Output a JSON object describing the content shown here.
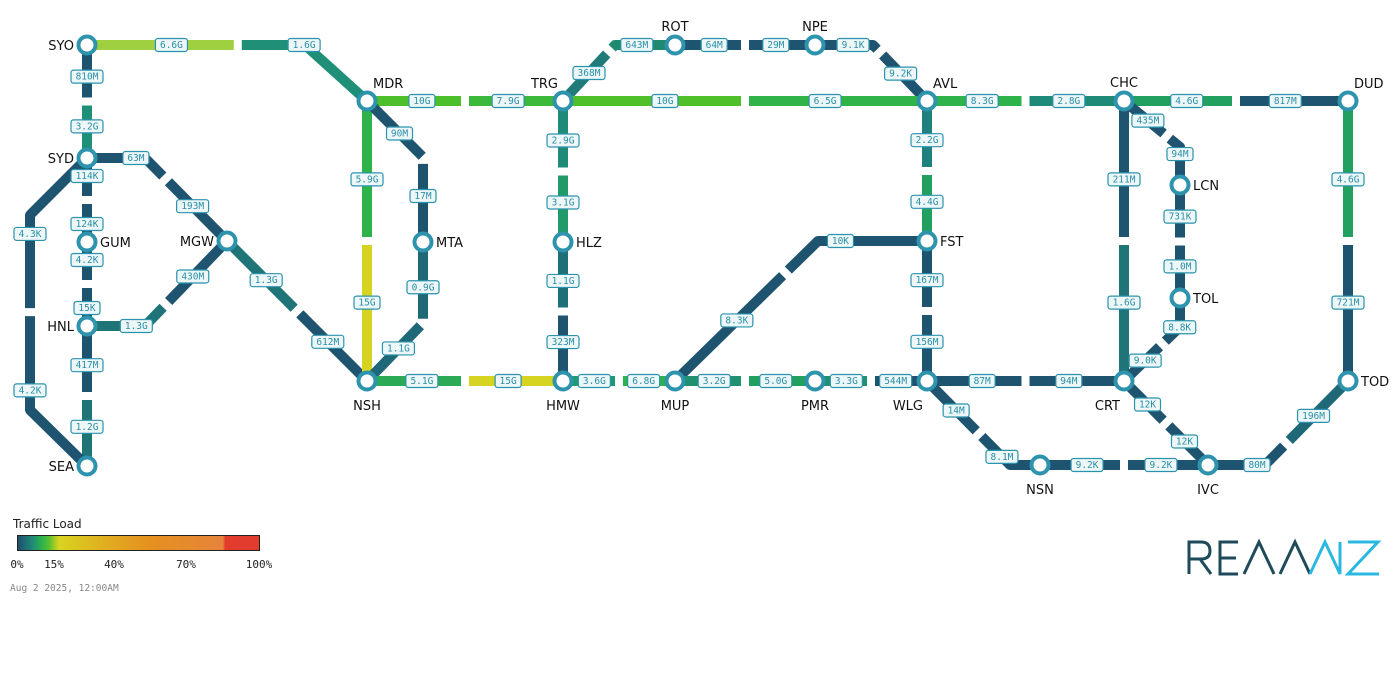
{
  "nodes": [
    "SYO",
    "SYD",
    "GUM",
    "HNL",
    "SEA",
    "MGW",
    "MDR",
    "MTA",
    "NSH",
    "TRG",
    "ROT",
    "NPE",
    "AVL",
    "HLZ",
    "HMW",
    "MUP",
    "PMR",
    "WLG",
    "FST",
    "CHC",
    "DUD",
    "LCN",
    "TOL",
    "CRT",
    "TOD",
    "NSN",
    "IVC"
  ],
  "links": [
    {
      "from": "SYO",
      "to": "MDR",
      "a": {
        "label": "6.6G",
        "color": "#9fd040"
      },
      "b": {
        "label": "1.6G",
        "color": "#1f8f78"
      }
    },
    {
      "from": "SYO",
      "to": "SYD",
      "a": {
        "label": "810M",
        "color": "#1e5470"
      },
      "b": {
        "label": "3.2G",
        "color": "#1f9078"
      }
    },
    {
      "from": "SYD",
      "to": "GUM",
      "a": {
        "label": "114K",
        "color": "#1e5470"
      },
      "b": {
        "label": "124K",
        "color": "#1e5470"
      }
    },
    {
      "from": "GUM",
      "to": "HNL",
      "a": {
        "label": "4.2K",
        "color": "#1e5470"
      },
      "b": {
        "label": "15K",
        "color": "#1e5470"
      }
    },
    {
      "from": "HNL",
      "to": "SEA",
      "a": {
        "label": "417M",
        "color": "#1e5470"
      },
      "b": {
        "label": "1.2G",
        "color": "#1f7478"
      }
    },
    {
      "from": "SYD",
      "to": "SEA",
      "a": {
        "label": "4.3K",
        "color": "#1e5470"
      },
      "b": {
        "label": "4.2K",
        "color": "#1e5470"
      }
    },
    {
      "from": "SYD",
      "to": "MGW",
      "a": {
        "label": "63M",
        "color": "#1e5470"
      },
      "b": {
        "label": "193M",
        "color": "#1e5470"
      }
    },
    {
      "from": "HNL",
      "to": "MGW",
      "a": {
        "label": "1.3G",
        "color": "#1f7478"
      },
      "b": {
        "label": "430M",
        "color": "#1e5470"
      }
    },
    {
      "from": "MGW",
      "to": "NSH",
      "a": {
        "label": "1.3G",
        "color": "#1f7478"
      },
      "b": {
        "label": "612M",
        "color": "#1e5470"
      }
    },
    {
      "from": "MDR",
      "to": "TRG",
      "a": {
        "label": "10G",
        "color": "#4cbf2a"
      },
      "b": {
        "label": "7.9G",
        "color": "#3cb83a"
      }
    },
    {
      "from": "MDR",
      "to": "NSH",
      "a": {
        "label": "5.9G",
        "color": "#2db34a"
      },
      "b": {
        "label": "15G",
        "color": "#d6d420"
      }
    },
    {
      "from": "MDR",
      "to": "MTA",
      "a": {
        "label": "90M",
        "color": "#1e5470"
      },
      "b": {
        "label": "17M",
        "color": "#1e5470"
      }
    },
    {
      "from": "MTA",
      "to": "NSH",
      "a": {
        "label": "0.9G",
        "color": "#1f6878"
      },
      "b": {
        "label": "1.1G",
        "color": "#1f6878"
      }
    },
    {
      "from": "NSH",
      "to": "HMW",
      "a": {
        "label": "5.1G",
        "color": "#2aaa55"
      },
      "b": {
        "label": "15G",
        "color": "#d6d420"
      }
    },
    {
      "from": "TRG",
      "to": "ROT",
      "a": {
        "label": "368M",
        "color": "#1f7a78"
      },
      "b": {
        "label": "643M",
        "color": "#1f8a70"
      }
    },
    {
      "from": "ROT",
      "to": "NPE",
      "a": {
        "label": "64M",
        "color": "#1e5470"
      },
      "b": {
        "label": "29M",
        "color": "#1e5470"
      }
    },
    {
      "from": "NPE",
      "to": "AVL",
      "a": {
        "label": "9.1K",
        "color": "#1e5470"
      },
      "b": {
        "label": "9.2K",
        "color": "#1e5470"
      }
    },
    {
      "from": "TRG",
      "to": "AVL",
      "a": {
        "label": "10G",
        "color": "#50c02a"
      },
      "b": {
        "label": "6.5G",
        "color": "#30b448"
      }
    },
    {
      "from": "TRG",
      "to": "HLZ",
      "a": {
        "label": "2.9G",
        "color": "#1f8a78"
      },
      "b": {
        "label": "3.1G",
        "color": "#1f9a68"
      }
    },
    {
      "from": "HLZ",
      "to": "HMW",
      "a": {
        "label": "1.1G",
        "color": "#1f6f78"
      },
      "b": {
        "label": "323M",
        "color": "#1e5470"
      }
    },
    {
      "from": "HMW",
      "to": "MUP",
      "a": {
        "label": "3.6G",
        "color": "#1f9a70"
      },
      "b": {
        "label": "6.8G",
        "color": "#2db34a"
      }
    },
    {
      "from": "MUP",
      "to": "FST",
      "a": {
        "label": "8.3K",
        "color": "#1e5470"
      },
      "b": {
        "label": "10K",
        "color": "#1e5470"
      }
    },
    {
      "from": "MUP",
      "to": "PMR",
      "a": {
        "label": "3.2G",
        "color": "#1f9070"
      },
      "b": {
        "label": "5.0G",
        "color": "#22a060"
      }
    },
    {
      "from": "PMR",
      "to": "WLG",
      "a": {
        "label": "3.3G",
        "color": "#1f9070"
      },
      "b": {
        "label": "544M",
        "color": "#1e5470"
      }
    },
    {
      "from": "AVL",
      "to": "FST",
      "a": {
        "label": "2.2G",
        "color": "#1f8080"
      },
      "b": {
        "label": "4.4G",
        "color": "#22a060"
      }
    },
    {
      "from": "FST",
      "to": "WLG",
      "a": {
        "label": "167M",
        "color": "#1e5470"
      },
      "b": {
        "label": "156M",
        "color": "#1e5470"
      }
    },
    {
      "from": "AVL",
      "to": "CHC",
      "a": {
        "label": "8.3G",
        "color": "#2db34a"
      },
      "b": {
        "label": "2.8G",
        "color": "#1f8a78"
      }
    },
    {
      "from": "CHC",
      "to": "DUD",
      "a": {
        "label": "4.6G",
        "color": "#22a060"
      },
      "b": {
        "label": "817M",
        "color": "#1e5470"
      }
    },
    {
      "from": "CHC",
      "to": "CRT",
      "a": {
        "label": "211M",
        "color": "#1e5470"
      },
      "b": {
        "label": "1.6G",
        "color": "#1f7478"
      }
    },
    {
      "from": "CHC",
      "to": "LCN",
      "a": {
        "label": "435M",
        "color": "#1e5470"
      },
      "b": {
        "label": "94M",
        "color": "#1e5470"
      }
    },
    {
      "from": "LCN",
      "to": "TOL",
      "a": {
        "label": "731K",
        "color": "#1e5470"
      },
      "b": {
        "label": "1.0M",
        "color": "#1e5470"
      }
    },
    {
      "from": "TOL",
      "to": "CRT",
      "a": {
        "label": "8.8K",
        "color": "#1e5470"
      },
      "b": {
        "label": "9.0K",
        "color": "#1e5470"
      }
    },
    {
      "from": "WLG",
      "to": "CRT",
      "a": {
        "label": "87M",
        "color": "#1e5470"
      },
      "b": {
        "label": "94M",
        "color": "#1e5470"
      }
    },
    {
      "from": "WLG",
      "to": "NSN",
      "a": {
        "label": "14M",
        "color": "#1e5470"
      },
      "b": {
        "label": "8.1M",
        "color": "#1e5470"
      }
    },
    {
      "from": "NSN",
      "to": "IVC",
      "a": {
        "label": "9.2K",
        "color": "#1e5470"
      },
      "b": {
        "label": "9.2K",
        "color": "#1e5470"
      }
    },
    {
      "from": "CRT",
      "to": "IVC",
      "a": {
        "label": "12K",
        "color": "#1e5470"
      },
      "b": {
        "label": "12K",
        "color": "#1e5470"
      }
    },
    {
      "from": "IVC",
      "to": "TOD",
      "a": {
        "label": "80M",
        "color": "#1e5470"
      },
      "b": {
        "label": "196M",
        "color": "#1f6878"
      }
    },
    {
      "from": "DUD",
      "to": "TOD",
      "a": {
        "label": "4.6G",
        "color": "#22a060"
      },
      "b": {
        "label": "721M",
        "color": "#1e5470"
      }
    }
  ],
  "legend": {
    "title": "Traffic Load",
    "ticks": [
      "0%",
      "15%",
      "40%",
      "70%",
      "100%"
    ]
  },
  "timestamp": "Aug 2 2025, 12:00AM",
  "logo": {
    "text": "REANNZ",
    "color_dark": "#1e4a5a",
    "color_light": "#2ab8e0"
  }
}
